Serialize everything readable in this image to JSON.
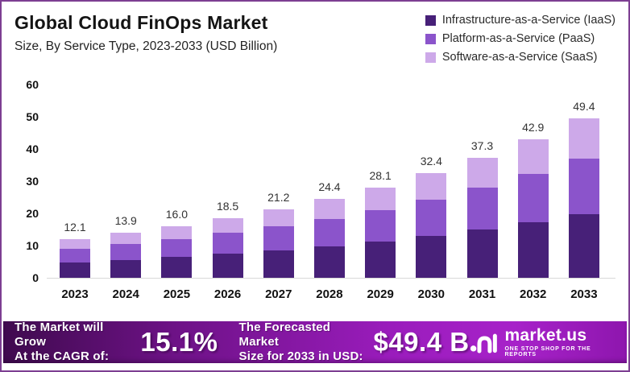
{
  "header": {
    "title": "Global Cloud FinOps Market",
    "subtitle": "Size, By Service Type, 2023-2033 (USD Billion)"
  },
  "legend": {
    "items": [
      {
        "label": "Infrastructure-as-a-Service (IaaS)",
        "color": "#472078"
      },
      {
        "label": "Platform-as-a-Service (PaaS)",
        "color": "#8B54CB"
      },
      {
        "label": "Software-as-a-Service (SaaS)",
        "color": "#CDA9E9"
      }
    ]
  },
  "chart_data": {
    "type": "bar",
    "stacked": true,
    "title": "Global Cloud FinOps Market, Size, By Service Type, 2023-2033 (USD Billion)",
    "xlabel": "",
    "ylabel": "",
    "ylim": [
      0,
      60
    ],
    "yticks": [
      0,
      10,
      20,
      30,
      40,
      50,
      60
    ],
    "grid": false,
    "legend_position": "top-right",
    "categories": [
      "2023",
      "2024",
      "2025",
      "2026",
      "2027",
      "2028",
      "2029",
      "2030",
      "2031",
      "2032",
      "2033"
    ],
    "series": [
      {
        "name": "Infrastructure-as-a-Service (IaaS)",
        "color": "#472078",
        "values": [
          4.8,
          5.6,
          6.4,
          7.4,
          8.5,
          9.8,
          11.2,
          13.0,
          14.9,
          17.2,
          19.8
        ]
      },
      {
        "name": "Platform-as-a-Service (PaaS)",
        "color": "#8B54CB",
        "values": [
          4.2,
          4.9,
          5.6,
          6.5,
          7.4,
          8.5,
          9.8,
          11.3,
          13.1,
          15.0,
          17.3
        ]
      },
      {
        "name": "Software-as-a-Service (SaaS)",
        "color": "#CDA9E9",
        "values": [
          3.1,
          3.4,
          4.0,
          4.6,
          5.3,
          6.1,
          7.1,
          8.1,
          9.3,
          10.7,
          12.3
        ]
      }
    ],
    "totals": [
      12.1,
      13.9,
      16.0,
      18.5,
      21.2,
      24.4,
      28.1,
      32.4,
      37.3,
      42.9,
      49.4
    ]
  },
  "banner": {
    "cagr_label_line1": "The Market will Grow",
    "cagr_label_line2": "At the CAGR of:",
    "cagr_value": "15.1%",
    "forecast_label_line1": "The Forecasted Market",
    "forecast_label_line2": "Size for 2033 in USD:",
    "forecast_value": "$49.4 B",
    "brand": "market.us",
    "brand_tagline": "ONE STOP SHOP FOR THE REPORTS"
  },
  "colors": {
    "border": "#7D3F92",
    "baseline": "#D9D9D9",
    "banner_gradient_start": "#3F0A4E",
    "banner_gradient_end": "#8E16AE"
  }
}
